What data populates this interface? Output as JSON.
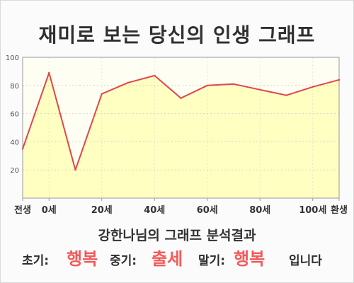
{
  "title": "재미로 보는 당신의 인생 그래프",
  "chart_data": {
    "type": "area",
    "x": [
      0,
      10,
      20,
      30,
      40,
      50,
      60,
      70,
      80,
      90,
      100,
      110,
      120
    ],
    "x_tick_labels": [
      {
        "value": 0,
        "label": "전생"
      },
      {
        "value": 10,
        "label": "0세"
      },
      {
        "value": 30,
        "label": "20세"
      },
      {
        "value": 50,
        "label": "40세"
      },
      {
        "value": 70,
        "label": "60세"
      },
      {
        "value": 90,
        "label": "80세"
      },
      {
        "value": 110,
        "label": "100세"
      },
      {
        "value": 120,
        "label": "환생"
      }
    ],
    "series": [
      {
        "values": [
          35,
          89,
          20,
          74,
          82,
          87,
          71,
          80,
          81,
          77,
          73,
          79,
          84
        ]
      }
    ],
    "ylim": [
      0,
      100
    ],
    "y_ticks": [
      20,
      40,
      60,
      80,
      100
    ],
    "grid": true,
    "line_color": "#e0464c",
    "fill_color": "#ffffc2",
    "plot_background": "#fffef3"
  },
  "summary": {
    "heading": "강한나님의 그래프 분석결과",
    "early_label": "초기:",
    "early_value": "행복",
    "middle_label": "중기:",
    "middle_value": "출세",
    "late_label": "말기:",
    "late_value": "행복",
    "ending": "입니다"
  }
}
